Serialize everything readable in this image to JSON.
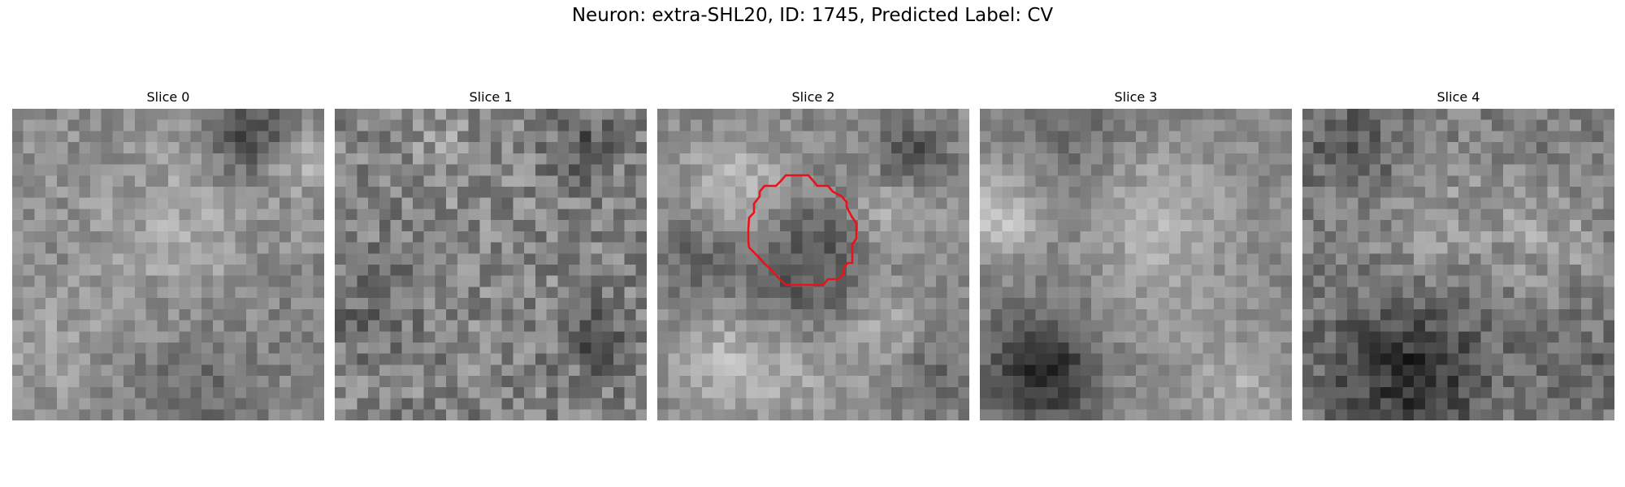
{
  "figure": {
    "title": "Neuron: extra-SHL20, ID: 1745, Predicted Label: CV"
  },
  "slices": [
    {
      "title": "Slice 0",
      "has_contour": false
    },
    {
      "title": "Slice 1",
      "has_contour": false
    },
    {
      "title": "Slice 2",
      "has_contour": true
    },
    {
      "title": "Slice 3",
      "has_contour": false
    },
    {
      "title": "Slice 4",
      "has_contour": false
    }
  ],
  "colors": {
    "contour": "#e8121a",
    "background": "#ffffff",
    "colormap": "gray"
  }
}
